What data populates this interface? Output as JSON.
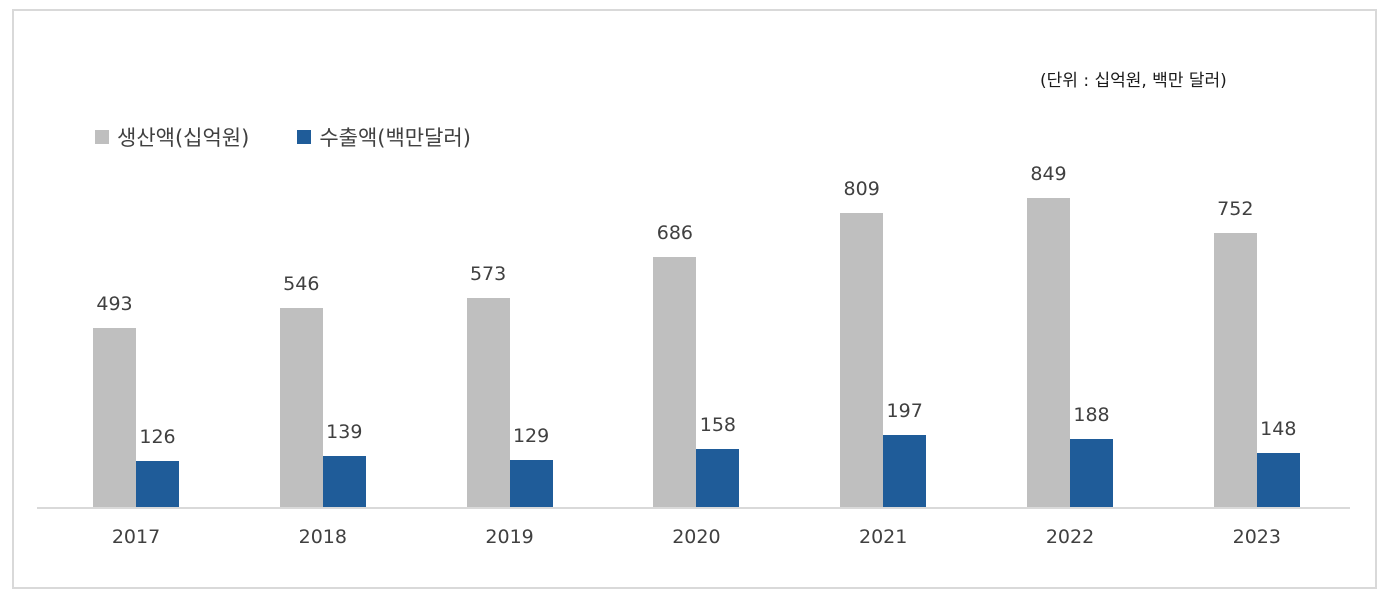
{
  "unit_label": "(단위 : 십억원, 백만 달러)",
  "colors": {
    "production": "#bfbfbf",
    "export": "#1f5c99",
    "axis": "#d9d9d9",
    "text": "#404040"
  },
  "legend": [
    {
      "label": "생산액(십억원)",
      "color": "#bfbfbf"
    },
    {
      "label": "수출액(백만달러)",
      "color": "#1f5c99"
    }
  ],
  "chart_data": {
    "type": "bar",
    "title": "",
    "xlabel": "",
    "ylabel": "",
    "categories": [
      "2017",
      "2018",
      "2019",
      "2020",
      "2021",
      "2022",
      "2023"
    ],
    "series": [
      {
        "name": "생산액(십억원)",
        "values": [
          493,
          546,
          573,
          686,
          809,
          849,
          752
        ]
      },
      {
        "name": "수출액(백만달러)",
        "values": [
          126,
          139,
          129,
          158,
          197,
          188,
          148
        ]
      }
    ],
    "unit_note": "(단위 : 십억원, 백만 달러)",
    "data_labels": true,
    "grid": false,
    "y_axis_visible": false,
    "legend_position": "top-left",
    "ylim": [
      0,
      980
    ]
  }
}
